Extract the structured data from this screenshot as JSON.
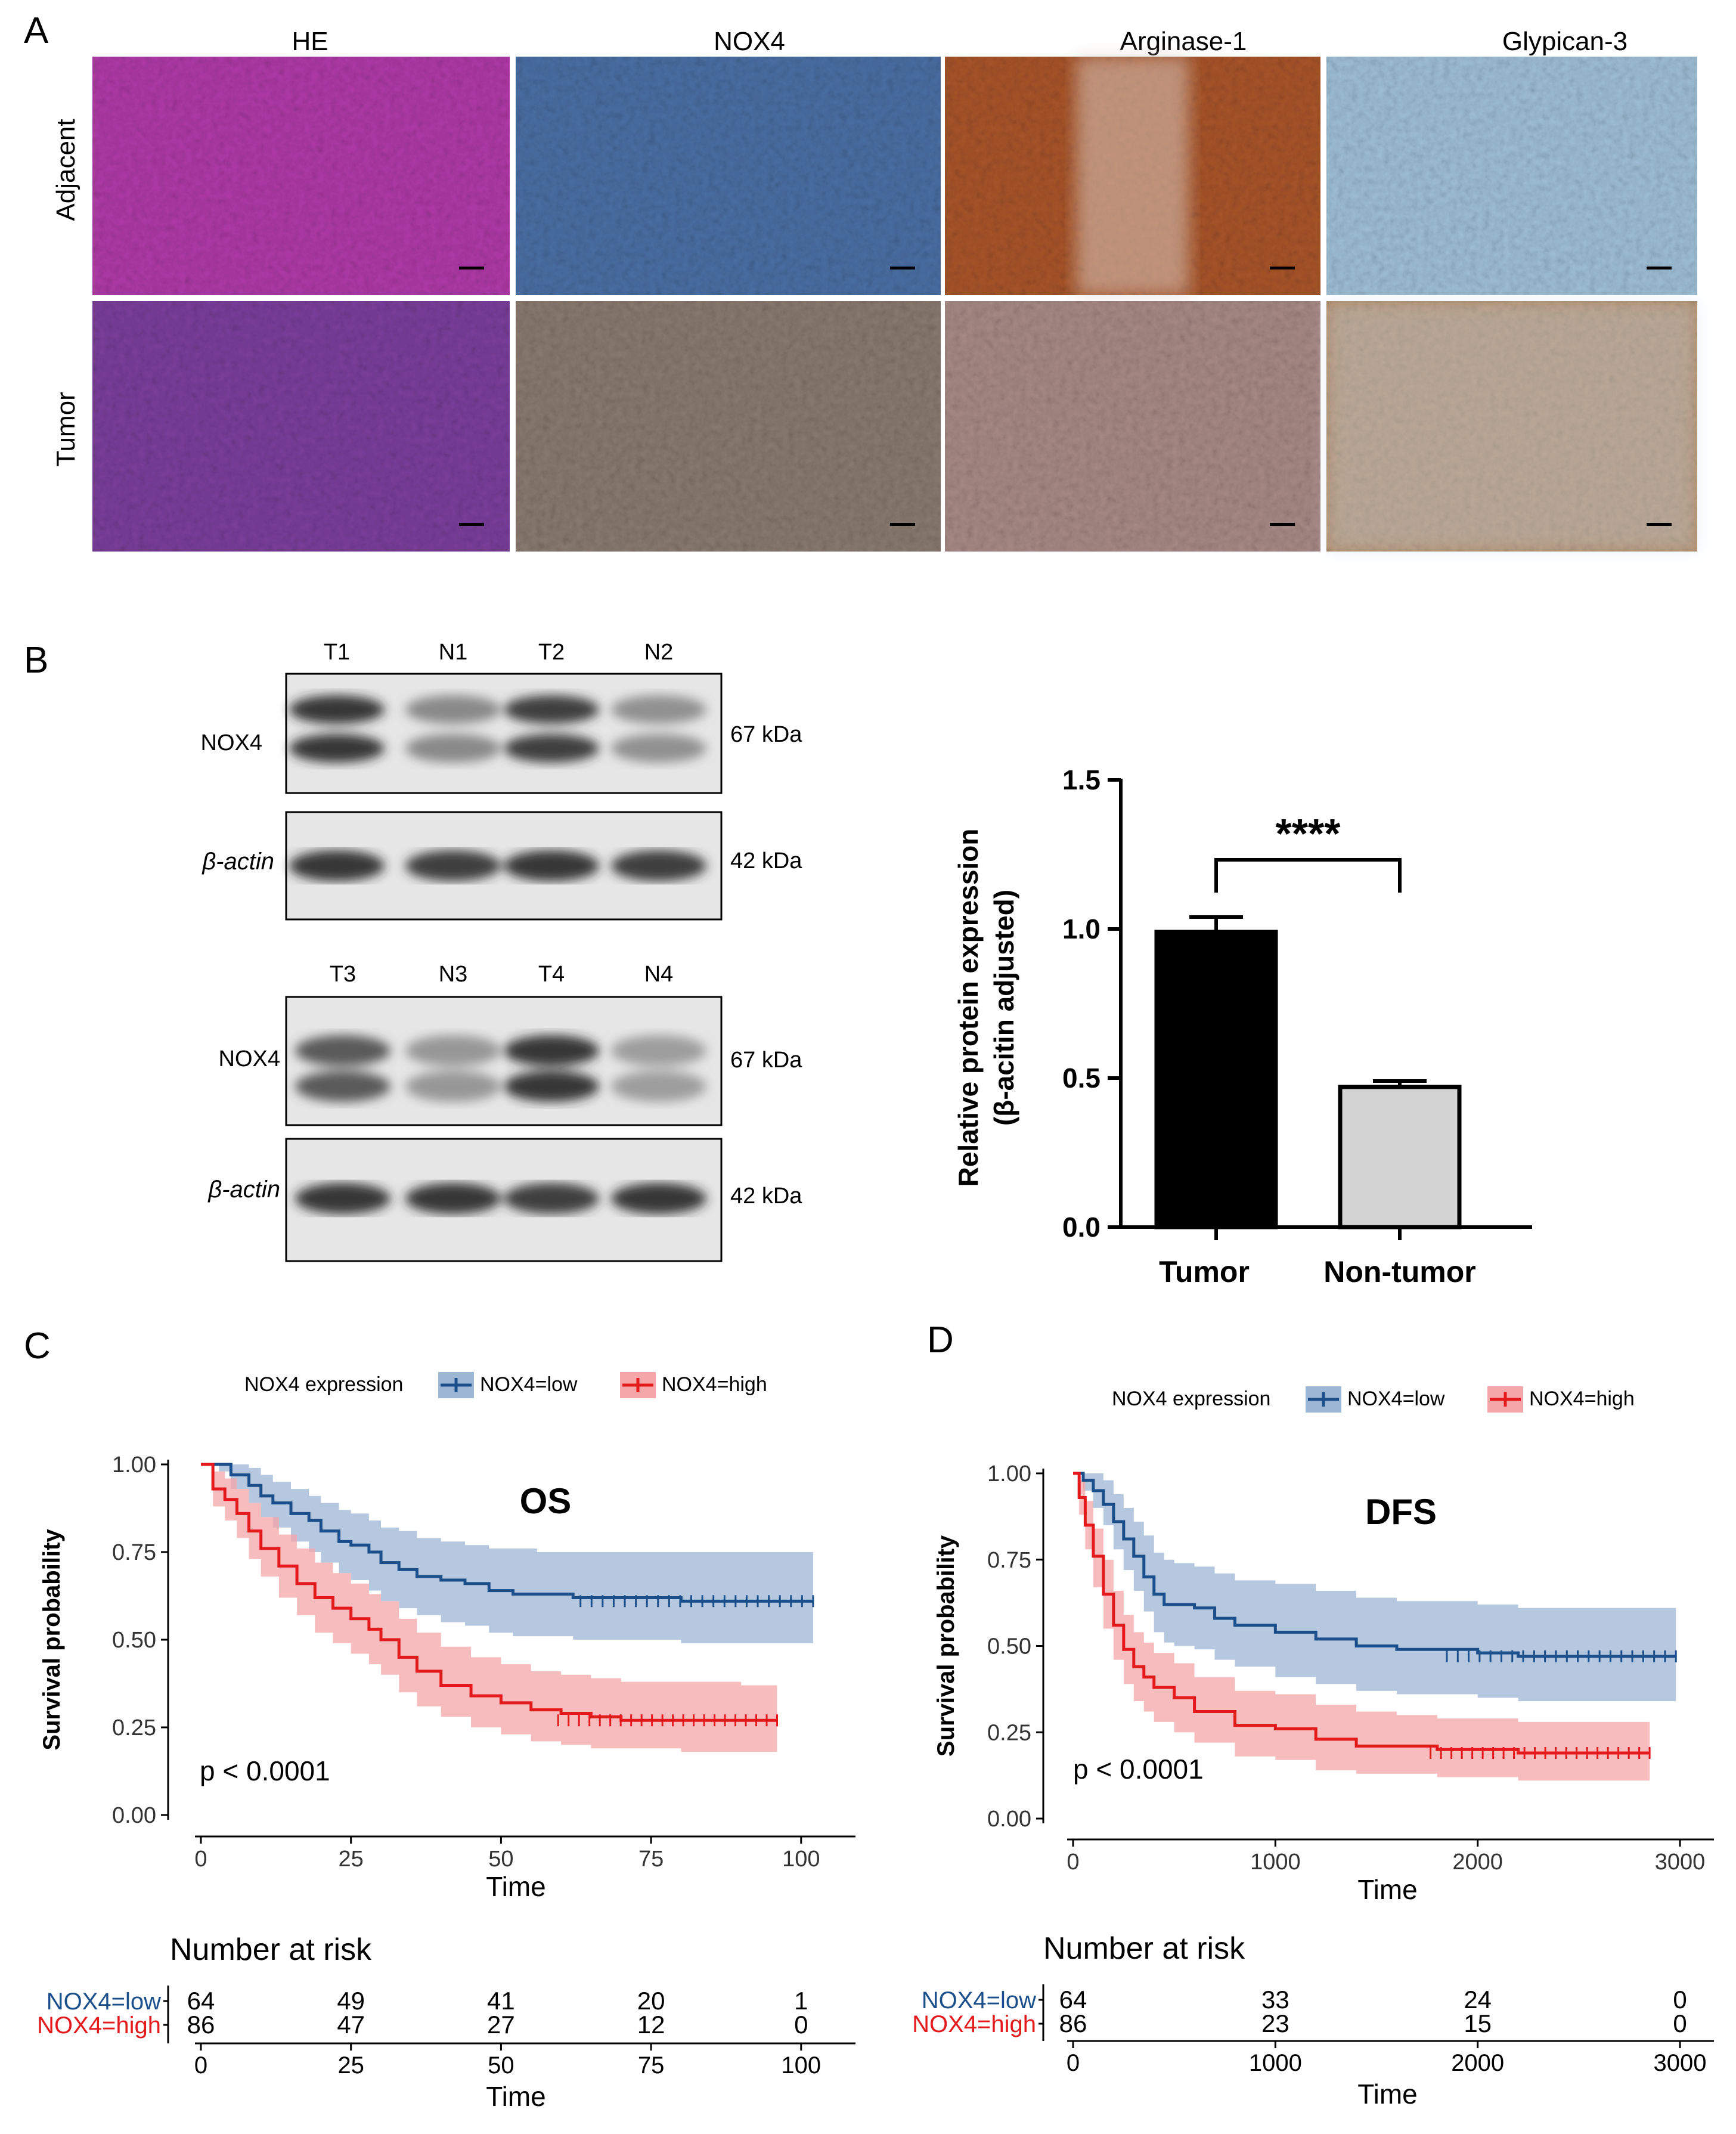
{
  "panel_a": {
    "label": "A",
    "columns": [
      "HE",
      "NOX4",
      "Arginase-1",
      "Glypican-3"
    ],
    "rows": [
      "Adjacent",
      "Tumor"
    ],
    "tissue_colors": {
      "he": "#b03aa8",
      "he_tumor": "#7b3f9c",
      "nox4": "#4a6fa3",
      "nox4_tumor": "#8a7a70",
      "arg": "#a8552a",
      "arg_tumor": "#a88a86",
      "gpc": "#9ebfd6",
      "gpc_tumor": "#b88f6a"
    }
  },
  "panel_b": {
    "label": "B",
    "blot1": {
      "lanes": [
        "T1",
        "N1",
        "T2",
        "N2"
      ],
      "rows": [
        {
          "protein": "NOX4",
          "size": "67 kDa"
        },
        {
          "protein": "β-actin",
          "size": "42 kDa"
        }
      ]
    },
    "blot2": {
      "lanes": [
        "T3",
        "N3",
        "T4",
        "N4"
      ],
      "rows": [
        {
          "protein": "NOX4",
          "size": "67 kDa"
        },
        {
          "protein": "β-actin",
          "size": "42 kDa"
        }
      ]
    }
  },
  "chart_data": [
    {
      "id": "bar-b",
      "type": "bar",
      "title": "",
      "categories": [
        "Tumor",
        "Non-tumor"
      ],
      "values": [
        0.99,
        0.47
      ],
      "errors": [
        0.05,
        0.02
      ],
      "colors": [
        "#000000",
        "#d3d3d3"
      ],
      "ylabel_line1": "Relative protein expression",
      "ylabel_line2": "(β-acitin adjusted)",
      "yticks": [
        "0.0",
        "0.5",
        "1.0",
        "1.5"
      ],
      "ylim": [
        0,
        1.5
      ],
      "significance": "****"
    },
    {
      "id": "km-c",
      "panel": "C",
      "type": "line",
      "title": "OS",
      "legend_title": "NOX4 expression",
      "xlabel": "Time",
      "ylabel": "Survival probability",
      "xlim": [
        0,
        103
      ],
      "ylim": [
        0,
        1
      ],
      "xticks": [
        "0",
        "25",
        "50",
        "75",
        "100"
      ],
      "yticks": [
        "0.00",
        "0.25",
        "0.50",
        "0.75",
        "1.00"
      ],
      "pvalue": "p < 0.0001",
      "series": [
        {
          "name": "NOX4=low",
          "color": "#1b4f8c",
          "band": "#9db6d4",
          "x": [
            0,
            3,
            5,
            8,
            10,
            12,
            15,
            18,
            20,
            23,
            25,
            28,
            30,
            33,
            36,
            40,
            44,
            48,
            52,
            56,
            62,
            70,
            80,
            90,
            102
          ],
          "y": [
            1.0,
            1.0,
            0.97,
            0.94,
            0.91,
            0.89,
            0.86,
            0.84,
            0.81,
            0.78,
            0.77,
            0.75,
            0.72,
            0.7,
            0.68,
            0.67,
            0.66,
            0.64,
            0.63,
            0.63,
            0.62,
            0.62,
            0.61,
            0.61,
            0.61
          ],
          "lower": [
            1.0,
            0.98,
            0.93,
            0.89,
            0.85,
            0.82,
            0.78,
            0.75,
            0.72,
            0.69,
            0.67,
            0.64,
            0.61,
            0.59,
            0.57,
            0.55,
            0.54,
            0.52,
            0.51,
            0.51,
            0.5,
            0.5,
            0.49,
            0.49,
            0.49
          ],
          "upper": [
            1.0,
            1.0,
            1.0,
            0.99,
            0.97,
            0.95,
            0.93,
            0.91,
            0.89,
            0.87,
            0.86,
            0.84,
            0.82,
            0.81,
            0.79,
            0.78,
            0.77,
            0.76,
            0.76,
            0.75,
            0.75,
            0.75,
            0.75,
            0.75,
            0.75
          ]
        },
        {
          "name": "NOX4=high",
          "color": "#e4191c",
          "band": "#f4a6a8",
          "x": [
            0,
            2,
            4,
            6,
            8,
            10,
            13,
            16,
            19,
            22,
            25,
            28,
            30,
            33,
            36,
            40,
            45,
            50,
            55,
            60,
            65,
            70,
            80,
            90,
            96
          ],
          "y": [
            1.0,
            0.93,
            0.9,
            0.86,
            0.81,
            0.76,
            0.71,
            0.66,
            0.62,
            0.59,
            0.56,
            0.53,
            0.5,
            0.45,
            0.41,
            0.37,
            0.34,
            0.32,
            0.3,
            0.29,
            0.28,
            0.27,
            0.27,
            0.27,
            0.27
          ],
          "lower": [
            1.0,
            0.88,
            0.84,
            0.79,
            0.73,
            0.68,
            0.62,
            0.57,
            0.52,
            0.49,
            0.46,
            0.43,
            0.4,
            0.35,
            0.31,
            0.28,
            0.25,
            0.23,
            0.21,
            0.2,
            0.19,
            0.19,
            0.18,
            0.18,
            0.18
          ],
          "upper": [
            1.0,
            0.98,
            0.96,
            0.93,
            0.89,
            0.85,
            0.8,
            0.76,
            0.72,
            0.69,
            0.66,
            0.63,
            0.61,
            0.56,
            0.52,
            0.48,
            0.45,
            0.43,
            0.41,
            0.4,
            0.39,
            0.38,
            0.38,
            0.37,
            0.37
          ]
        }
      ],
      "risk_table": {
        "title": "Number at risk",
        "xlabel": "Time",
        "ticks": [
          "0",
          "25",
          "50",
          "75",
          "100"
        ],
        "rows": [
          {
            "name": "NOX4=low",
            "counts": [
              "64",
              "49",
              "41",
              "20",
              "1"
            ]
          },
          {
            "name": "NOX4=high",
            "counts": [
              "86",
              "47",
              "27",
              "12",
              "0"
            ]
          }
        ]
      }
    },
    {
      "id": "km-d",
      "panel": "D",
      "type": "line",
      "title": "DFS",
      "legend_title": "NOX4 expression",
      "xlabel": "Time",
      "ylabel": "Survival probability",
      "xlim": [
        0,
        3050
      ],
      "ylim": [
        0,
        1
      ],
      "xticks": [
        "0",
        "1000",
        "2000",
        "3000"
      ],
      "yticks": [
        "0.00",
        "0.25",
        "0.50",
        "0.75",
        "1.00"
      ],
      "pvalue": "p < 0.0001",
      "series": [
        {
          "name": "NOX4=low",
          "color": "#1b4f8c",
          "band": "#9db6d4",
          "x": [
            0,
            50,
            100,
            150,
            200,
            250,
            300,
            350,
            400,
            450,
            500,
            600,
            700,
            800,
            1000,
            1200,
            1400,
            1600,
            1800,
            2000,
            2200,
            2600,
            2980
          ],
          "y": [
            1.0,
            0.98,
            0.95,
            0.91,
            0.86,
            0.81,
            0.76,
            0.7,
            0.65,
            0.62,
            0.62,
            0.61,
            0.58,
            0.56,
            0.54,
            0.52,
            0.5,
            0.49,
            0.49,
            0.48,
            0.47,
            0.47,
            0.47
          ],
          "lower": [
            1.0,
            0.95,
            0.9,
            0.85,
            0.78,
            0.72,
            0.66,
            0.6,
            0.54,
            0.51,
            0.5,
            0.49,
            0.46,
            0.44,
            0.41,
            0.39,
            0.37,
            0.36,
            0.36,
            0.35,
            0.34,
            0.34,
            0.34
          ],
          "upper": [
            1.0,
            1.0,
            1.0,
            0.98,
            0.94,
            0.9,
            0.86,
            0.82,
            0.77,
            0.75,
            0.74,
            0.73,
            0.71,
            0.69,
            0.68,
            0.66,
            0.64,
            0.63,
            0.63,
            0.62,
            0.61,
            0.61,
            0.61
          ]
        },
        {
          "name": "NOX4=high",
          "color": "#e4191c",
          "band": "#f4a6a8",
          "x": [
            0,
            30,
            60,
            100,
            150,
            200,
            250,
            300,
            350,
            400,
            500,
            600,
            800,
            1000,
            1200,
            1400,
            1600,
            1800,
            2000,
            2200,
            2500,
            2850
          ],
          "y": [
            1.0,
            0.93,
            0.85,
            0.76,
            0.65,
            0.56,
            0.49,
            0.44,
            0.41,
            0.38,
            0.35,
            0.31,
            0.27,
            0.26,
            0.23,
            0.21,
            0.21,
            0.2,
            0.2,
            0.19,
            0.19,
            0.19
          ],
          "lower": [
            1.0,
            0.88,
            0.78,
            0.67,
            0.55,
            0.46,
            0.39,
            0.34,
            0.31,
            0.28,
            0.25,
            0.22,
            0.18,
            0.17,
            0.14,
            0.13,
            0.13,
            0.12,
            0.12,
            0.11,
            0.11,
            0.11
          ],
          "upper": [
            1.0,
            0.98,
            0.92,
            0.84,
            0.75,
            0.66,
            0.59,
            0.54,
            0.51,
            0.48,
            0.45,
            0.41,
            0.37,
            0.36,
            0.33,
            0.31,
            0.3,
            0.29,
            0.29,
            0.28,
            0.28,
            0.28
          ]
        }
      ],
      "risk_table": {
        "title": "Number at risk",
        "xlabel": "Time",
        "ticks": [
          "0",
          "1000",
          "2000",
          "3000"
        ],
        "rows": [
          {
            "name": "NOX4=low",
            "counts": [
              "64",
              "33",
              "24",
              "0"
            ]
          },
          {
            "name": "NOX4=high",
            "counts": [
              "86",
              "23",
              "15",
              "0"
            ]
          }
        ]
      }
    }
  ]
}
